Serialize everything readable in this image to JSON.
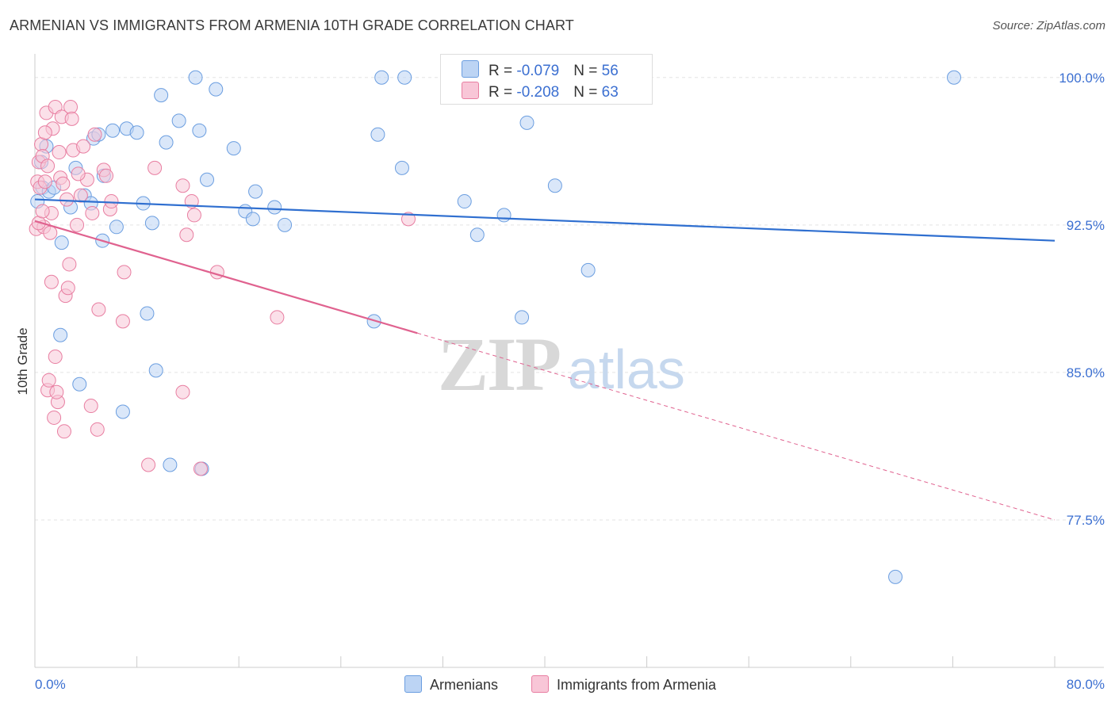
{
  "title": "ARMENIAN VS IMMIGRANTS FROM ARMENIA 10TH GRADE CORRELATION CHART",
  "source": "Source: ZipAtlas.com",
  "watermark": {
    "zip": "ZIP",
    "atlas": "atlas"
  },
  "legend": {
    "rows": [
      {
        "r_label": "R = ",
        "r_value": "-0.079",
        "n_label": "N = ",
        "n_value": "56"
      },
      {
        "r_label": "R = ",
        "r_value": "-0.208",
        "n_label": "N = ",
        "n_value": "63"
      }
    ]
  },
  "bottom_legend": {
    "series1": "Armenians",
    "series2": "Immigrants from Armenia"
  },
  "chart_data": {
    "type": "scatter",
    "title": "ARMENIAN VS IMMIGRANTS FROM ARMENIA 10TH GRADE CORRELATION CHART",
    "xlabel": "",
    "ylabel": "10th Grade",
    "xlim": [
      0,
      80
    ],
    "ylim": [
      70.0,
      101.2
    ],
    "x_tick_labels": [
      "0.0%",
      "80.0%"
    ],
    "y_ticks": [
      77.5,
      85.0,
      92.5,
      100.0
    ],
    "y_tick_labels": [
      "77.5%",
      "85.0%",
      "92.5%",
      "100.0%"
    ],
    "grid": "horizontal dashed",
    "legend_position": "top-center",
    "colors": {
      "series1": "#6b9ee0",
      "series1_fill": "#bcd4f4",
      "series2": "#e87ea1",
      "series2_fill": "#f8c6d7",
      "trend1": "#2f6fd0",
      "trend2": "#e0628f",
      "tick_label": "#3b6fd1"
    },
    "series": [
      {
        "name": "Armenians",
        "r": -0.079,
        "n": 56,
        "trend": {
          "x": [
            0,
            80
          ],
          "y": [
            93.8,
            91.7
          ]
        },
        "points": [
          [
            0.2,
            93.7
          ],
          [
            0.5,
            95.7
          ],
          [
            0.6,
            94.4
          ],
          [
            0.9,
            96.5
          ],
          [
            1.1,
            94.2
          ],
          [
            1.5,
            94.4
          ],
          [
            2.1,
            91.6
          ],
          [
            2.0,
            86.9
          ],
          [
            2.8,
            93.4
          ],
          [
            3.2,
            95.4
          ],
          [
            3.5,
            84.4
          ],
          [
            3.9,
            94.0
          ],
          [
            4.4,
            93.6
          ],
          [
            4.6,
            96.9
          ],
          [
            5.0,
            97.1
          ],
          [
            5.3,
            91.7
          ],
          [
            5.4,
            95.0
          ],
          [
            6.1,
            97.3
          ],
          [
            6.4,
            92.4
          ],
          [
            6.9,
            83.0
          ],
          [
            7.2,
            97.4
          ],
          [
            8.0,
            97.2
          ],
          [
            8.5,
            93.6
          ],
          [
            8.8,
            88.0
          ],
          [
            9.2,
            92.6
          ],
          [
            9.5,
            85.1
          ],
          [
            9.9,
            99.1
          ],
          [
            10.3,
            96.7
          ],
          [
            10.6,
            80.3
          ],
          [
            11.3,
            97.8
          ],
          [
            12.6,
            100.0
          ],
          [
            12.9,
            97.3
          ],
          [
            13.1,
            80.1
          ],
          [
            13.5,
            94.8
          ],
          [
            14.2,
            99.4
          ],
          [
            15.6,
            96.4
          ],
          [
            16.5,
            93.2
          ],
          [
            17.1,
            92.8
          ],
          [
            17.3,
            94.2
          ],
          [
            18.8,
            93.4
          ],
          [
            19.6,
            92.5
          ],
          [
            26.6,
            87.6
          ],
          [
            26.9,
            97.1
          ],
          [
            27.2,
            100.0
          ],
          [
            28.8,
            95.4
          ],
          [
            29.0,
            100.0
          ],
          [
            32.5,
            100.0
          ],
          [
            33.7,
            93.7
          ],
          [
            34.7,
            92.0
          ],
          [
            36.8,
            93.0
          ],
          [
            38.2,
            87.8
          ],
          [
            38.6,
            97.7
          ],
          [
            40.8,
            94.5
          ],
          [
            43.4,
            90.2
          ],
          [
            67.5,
            74.6
          ],
          [
            72.1,
            100.0
          ]
        ]
      },
      {
        "name": "Immigrants from Armenia",
        "r": -0.208,
        "n": 63,
        "trend": {
          "x": [
            0,
            30.0
          ],
          "y": [
            92.7,
            87.0
          ]
        },
        "trend_extension": {
          "x": [
            30.0,
            80
          ],
          "y": [
            87.0,
            77.5
          ]
        },
        "points": [
          [
            0.1,
            92.3
          ],
          [
            0.2,
            94.7
          ],
          [
            0.3,
            95.7
          ],
          [
            0.4,
            94.4
          ],
          [
            0.5,
            96.6
          ],
          [
            0.6,
            96.0
          ],
          [
            0.7,
            92.4
          ],
          [
            0.8,
            94.7
          ],
          [
            0.9,
            98.2
          ],
          [
            1.0,
            95.5
          ],
          [
            1.0,
            84.1
          ],
          [
            1.1,
            84.6
          ],
          [
            1.2,
            92.1
          ],
          [
            1.3,
            89.6
          ],
          [
            1.3,
            93.1
          ],
          [
            1.4,
            97.4
          ],
          [
            1.5,
            82.7
          ],
          [
            1.6,
            85.8
          ],
          [
            1.6,
            98.5
          ],
          [
            1.8,
            83.5
          ],
          [
            1.9,
            96.2
          ],
          [
            2.0,
            94.9
          ],
          [
            2.1,
            98.0
          ],
          [
            2.2,
            94.6
          ],
          [
            2.3,
            82.0
          ],
          [
            2.4,
            88.9
          ],
          [
            2.6,
            89.3
          ],
          [
            2.7,
            90.5
          ],
          [
            2.8,
            98.5
          ],
          [
            2.9,
            97.9
          ],
          [
            3.0,
            96.3
          ],
          [
            3.3,
            92.5
          ],
          [
            3.6,
            94.0
          ],
          [
            3.8,
            96.5
          ],
          [
            4.1,
            94.8
          ],
          [
            4.4,
            83.3
          ],
          [
            4.5,
            93.1
          ],
          [
            4.7,
            97.1
          ],
          [
            4.9,
            82.1
          ],
          [
            5.0,
            88.2
          ],
          [
            5.4,
            95.3
          ],
          [
            5.6,
            95.0
          ],
          [
            5.9,
            93.3
          ],
          [
            6.0,
            93.7
          ],
          [
            6.9,
            87.6
          ],
          [
            7.0,
            90.1
          ],
          [
            8.9,
            80.3
          ],
          [
            9.4,
            95.4
          ],
          [
            11.6,
            84.0
          ],
          [
            11.6,
            94.5
          ],
          [
            11.9,
            92.0
          ],
          [
            12.3,
            93.7
          ],
          [
            12.5,
            93.0
          ],
          [
            13.0,
            80.1
          ],
          [
            14.3,
            90.1
          ],
          [
            19.0,
            87.8
          ],
          [
            29.3,
            92.8
          ],
          [
            0.3,
            92.6
          ],
          [
            0.6,
            93.2
          ],
          [
            0.8,
            97.2
          ],
          [
            1.7,
            84.0
          ],
          [
            3.4,
            95.1
          ],
          [
            2.5,
            93.8
          ]
        ]
      }
    ]
  }
}
